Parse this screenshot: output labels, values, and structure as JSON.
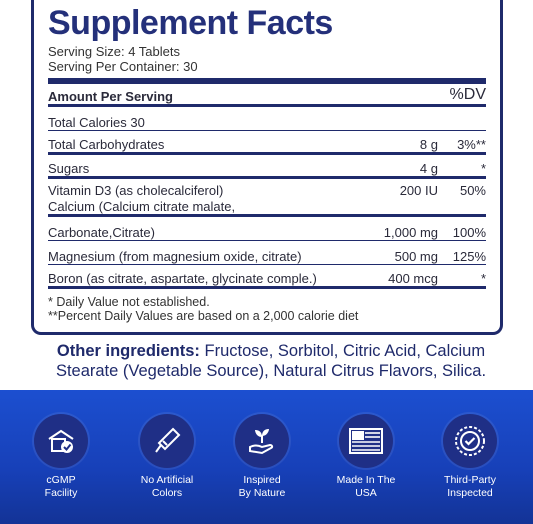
{
  "facts": {
    "title": "Supplement Facts",
    "serving_size": "Serving Size: 4 Tablets",
    "servings_per_container": "Serving Per Container: 30",
    "header_amount": "Amount Per Serving",
    "header_dv": "%DV",
    "rows": [
      {
        "name": "Total Calories 30",
        "amount": "",
        "dv": ""
      },
      {
        "name": "Total Carbohydrates",
        "amount": "8 g",
        "dv": "3%**"
      },
      {
        "name": "Sugars",
        "amount": "4 g",
        "dv": "*"
      },
      {
        "name": "Vitamin D3 (as cholecalciferol)",
        "amount": "200 IU",
        "dv": "50%",
        "name2": "Calcium (Calcium citrate malate,"
      },
      {
        "name": "Carbonate,Citrate)",
        "amount": "1,000 mg",
        "dv": "100%"
      },
      {
        "name": "Magnesium (from magnesium oxide, citrate)",
        "amount": "500 mg",
        "dv": "125%"
      },
      {
        "name": "Boron (as citrate, aspartate, glycinate comple.)",
        "amount": "400 mcg",
        "dv": "*"
      }
    ],
    "footnote1": "* Daily Value not established.",
    "footnote2": "**Percent Daily Values are based on a 2,000 calorie diet"
  },
  "ingredients": {
    "label": "Other ingredients:",
    "text": " Fructose, Sorbitol, Citric Acid, Calcium Stearate (Vegetable Source), Natural Citrus Flavors, Silica."
  },
  "badges": [
    {
      "icon": "cgmp-facility-icon",
      "line1": "cGMP",
      "line2": "Facility"
    },
    {
      "icon": "no-artificial-colors-icon",
      "line1": "No Artificial",
      "line2": "Colors"
    },
    {
      "icon": "plant-in-hand-icon",
      "line1": "Inspired",
      "line2": "By Nature"
    },
    {
      "icon": "usa-flag-icon",
      "line1": "Made In The",
      "line2": "USA"
    },
    {
      "icon": "third-party-check-icon",
      "line1": "Third-Party",
      "line2": "Inspected"
    }
  ],
  "colors": {
    "navy": "#1f2a6b",
    "band_blue": "#1c4fd0",
    "badge_circle": "#1f2f86"
  }
}
